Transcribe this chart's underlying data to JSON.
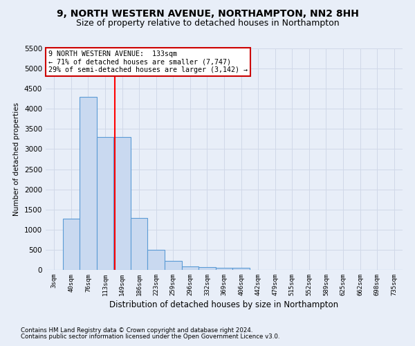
{
  "title": "9, NORTH WESTERN AVENUE, NORTHAMPTON, NN2 8HH",
  "subtitle": "Size of property relative to detached houses in Northampton",
  "xlabel": "Distribution of detached houses by size in Northampton",
  "ylabel": "Number of detached properties",
  "footnote1": "Contains HM Land Registry data © Crown copyright and database right 2024.",
  "footnote2": "Contains public sector information licensed under the Open Government Licence v3.0.",
  "categories": [
    "3sqm",
    "40sqm",
    "76sqm",
    "113sqm",
    "149sqm",
    "186sqm",
    "223sqm",
    "259sqm",
    "296sqm",
    "332sqm",
    "369sqm",
    "406sqm",
    "442sqm",
    "479sqm",
    "515sqm",
    "552sqm",
    "589sqm",
    "625sqm",
    "662sqm",
    "698sqm",
    "735sqm"
  ],
  "values": [
    0,
    1270,
    4300,
    3300,
    3300,
    1290,
    490,
    215,
    85,
    70,
    55,
    55,
    0,
    0,
    0,
    0,
    0,
    0,
    0,
    0,
    0
  ],
  "bar_color": "#c9d9f0",
  "bar_edge_color": "#5b9bd5",
  "property_label": "9 NORTH WESTERN AVENUE:  133sqm",
  "stat1": "← 71% of detached houses are smaller (7,747)",
  "stat2": "29% of semi-detached houses are larger (3,142) →",
  "annotation_box_color": "#cc0000",
  "ylim": [
    0,
    5500
  ],
  "yticks": [
    0,
    500,
    1000,
    1500,
    2000,
    2500,
    3000,
    3500,
    4000,
    4500,
    5000,
    5500
  ],
  "bg_color": "#e8eef8",
  "grid_color": "#d0d8e8",
  "title_fontsize": 10,
  "subtitle_fontsize": 9,
  "red_line_index": 3.55
}
